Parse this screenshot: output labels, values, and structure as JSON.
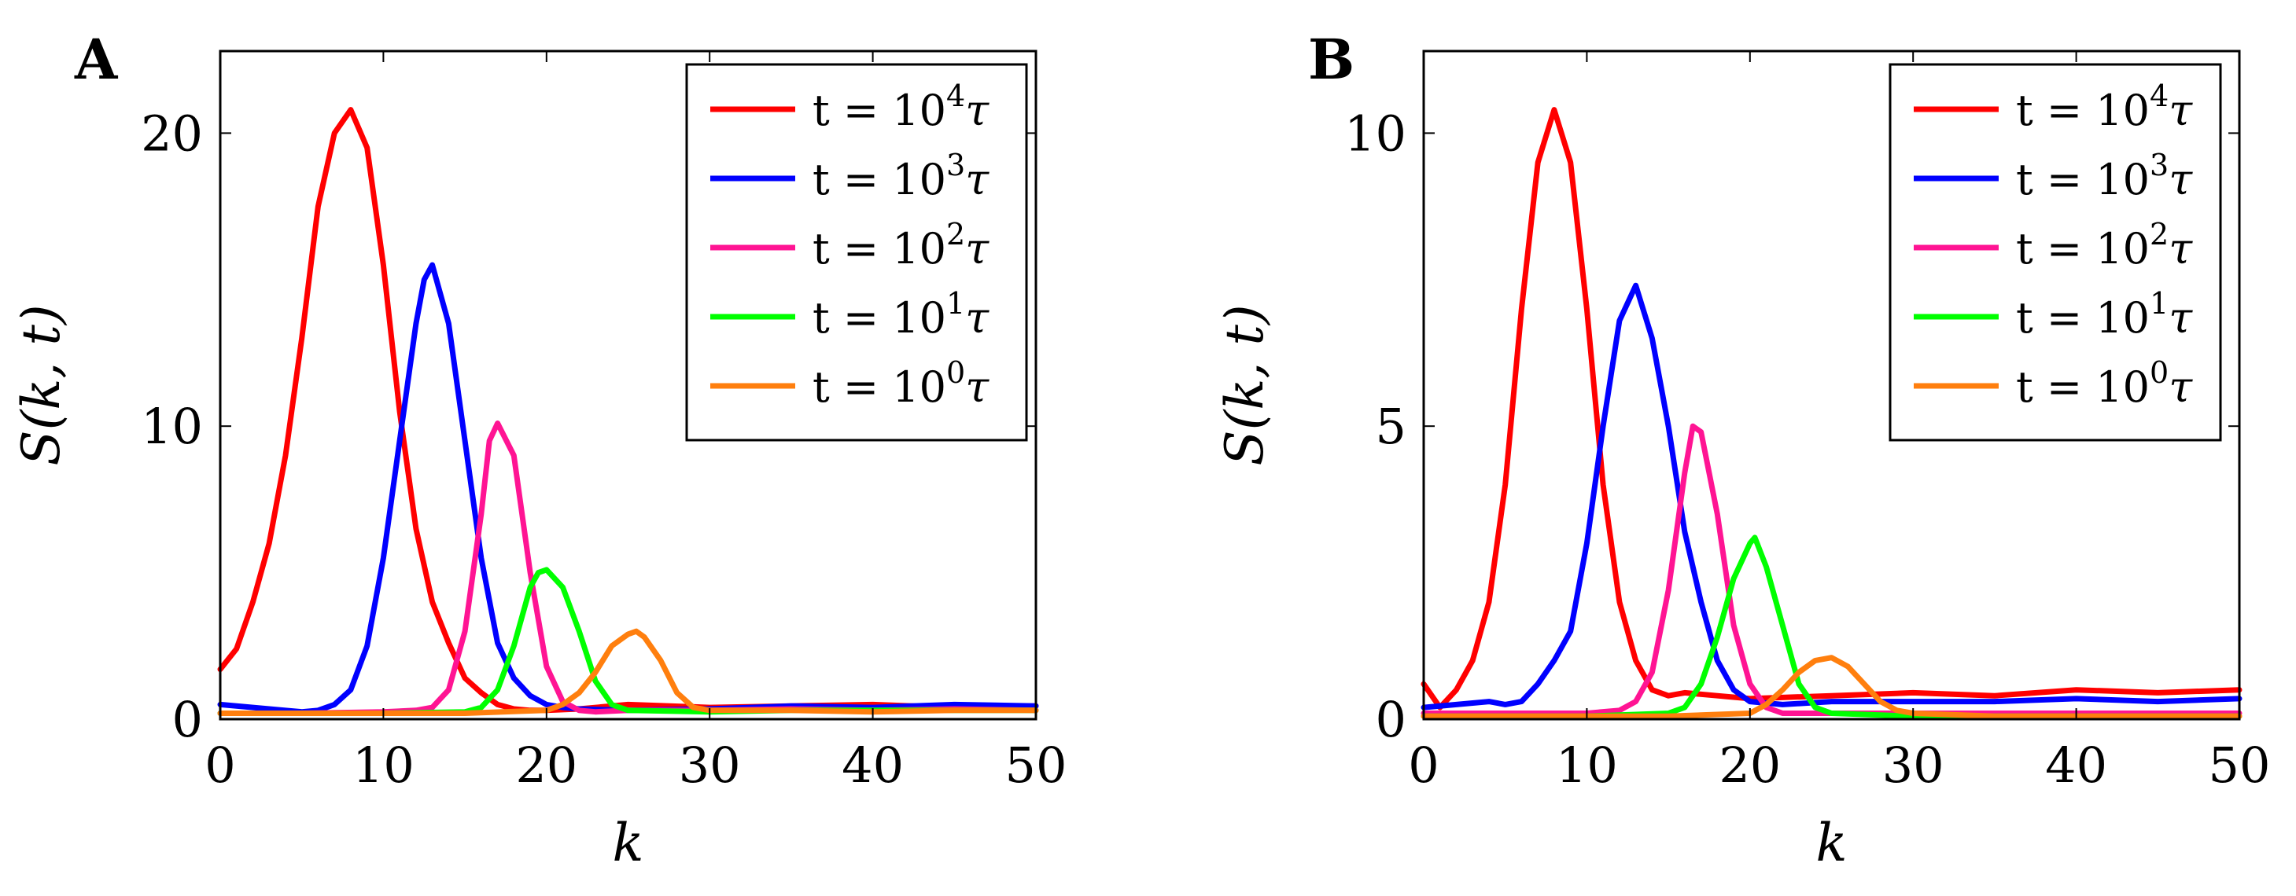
{
  "chart_data": [
    {
      "type": "line",
      "panel": "A",
      "xlabel": "k",
      "ylabel": "S(k, t)",
      "xlim": [
        0,
        50
      ],
      "ylim": [
        0,
        22.8
      ],
      "xticks": [
        0,
        10,
        20,
        30,
        40,
        50
      ],
      "yticks": [
        0,
        10,
        20
      ],
      "legend_position": "top-right",
      "series": [
        {
          "name": "t = 10^4 τ",
          "t_prefix": "t = 10",
          "exponent": "4",
          "t_suffix": "τ",
          "color": "#ff0000",
          "x": [
            0,
            1,
            2,
            3,
            4,
            5,
            6,
            7,
            8,
            9,
            10,
            11,
            12,
            13,
            14,
            15,
            16,
            17,
            18,
            19,
            20,
            22,
            25,
            30,
            35,
            40,
            45,
            50
          ],
          "y": [
            1.7,
            2.4,
            4.0,
            6.0,
            9.0,
            13.0,
            17.5,
            20.0,
            20.8,
            19.5,
            15.5,
            10.5,
            6.5,
            4.0,
            2.6,
            1.4,
            0.9,
            0.5,
            0.35,
            0.3,
            0.3,
            0.35,
            0.5,
            0.4,
            0.45,
            0.5,
            0.4,
            0.45
          ]
        },
        {
          "name": "t = 10^3 τ",
          "t_prefix": "t = 10",
          "exponent": "3",
          "t_suffix": "τ",
          "color": "#0000ff",
          "x": [
            0,
            2,
            4,
            5,
            6,
            7,
            8,
            9,
            10,
            11,
            12,
            12.5,
            13,
            14,
            15,
            16,
            17,
            18,
            19,
            20,
            21,
            22,
            25,
            30,
            35,
            40,
            45,
            50
          ],
          "y": [
            0.5,
            0.4,
            0.3,
            0.25,
            0.3,
            0.5,
            1.0,
            2.5,
            5.5,
            9.5,
            13.5,
            15.0,
            15.5,
            13.5,
            9.5,
            5.5,
            2.6,
            1.4,
            0.8,
            0.5,
            0.4,
            0.35,
            0.3,
            0.35,
            0.45,
            0.4,
            0.5,
            0.45
          ]
        },
        {
          "name": "t = 10^2 τ",
          "t_prefix": "t = 10",
          "exponent": "2",
          "t_suffix": "τ",
          "color": "#ff1493",
          "x": [
            0,
            5,
            10,
            12,
            13,
            14,
            15,
            16,
            16.5,
            17,
            18,
            19,
            20,
            21,
            22,
            23,
            25,
            30,
            35,
            40,
            45,
            50
          ],
          "y": [
            0.2,
            0.2,
            0.25,
            0.3,
            0.4,
            1.0,
            3.0,
            7.0,
            9.5,
            10.1,
            9.0,
            5.0,
            1.8,
            0.6,
            0.3,
            0.25,
            0.3,
            0.3,
            0.35,
            0.3,
            0.35,
            0.3
          ]
        },
        {
          "name": "t = 10^1 τ",
          "t_prefix": "t = 10",
          "exponent": "1",
          "t_suffix": "τ",
          "color": "#00ff00",
          "x": [
            0,
            5,
            10,
            15,
            16,
            17,
            18,
            19,
            19.5,
            20,
            21,
            22,
            23,
            24,
            25,
            30,
            35,
            40,
            45,
            50
          ],
          "y": [
            0.2,
            0.2,
            0.2,
            0.25,
            0.4,
            1.0,
            2.5,
            4.5,
            5.0,
            5.1,
            4.5,
            3.0,
            1.3,
            0.5,
            0.3,
            0.25,
            0.3,
            0.3,
            0.3,
            0.3
          ]
        },
        {
          "name": "t = 10^0 τ",
          "t_prefix": "t = 10",
          "exponent": "0",
          "t_suffix": "τ",
          "color": "#ff7f0e",
          "x": [
            0,
            5,
            10,
            15,
            20,
            21,
            22,
            23,
            24,
            25,
            25.5,
            26,
            27,
            28,
            29,
            30,
            35,
            40,
            45,
            50
          ],
          "y": [
            0.2,
            0.2,
            0.2,
            0.2,
            0.3,
            0.5,
            0.9,
            1.6,
            2.5,
            2.9,
            3.0,
            2.8,
            2.0,
            0.9,
            0.4,
            0.3,
            0.3,
            0.25,
            0.3,
            0.3
          ]
        }
      ]
    },
    {
      "type": "line",
      "panel": "B",
      "xlabel": "k",
      "ylabel": "S(k, t)",
      "xlim": [
        0,
        50
      ],
      "ylim": [
        0,
        11.4
      ],
      "xticks": [
        0,
        10,
        20,
        30,
        40,
        50
      ],
      "yticks": [
        0,
        5,
        10
      ],
      "legend_position": "top-right",
      "series": [
        {
          "name": "t = 10^4 τ",
          "t_prefix": "t = 10",
          "exponent": "4",
          "t_suffix": "τ",
          "color": "#ff0000",
          "x": [
            0,
            1,
            2,
            3,
            4,
            5,
            6,
            7,
            8,
            9,
            10,
            11,
            12,
            13,
            14,
            15,
            16,
            18,
            20,
            25,
            30,
            35,
            40,
            45,
            50
          ],
          "y": [
            0.6,
            0.2,
            0.5,
            1.0,
            2.0,
            4.0,
            7.0,
            9.5,
            10.4,
            9.5,
            7.0,
            4.0,
            2.0,
            1.0,
            0.5,
            0.4,
            0.45,
            0.4,
            0.35,
            0.4,
            0.45,
            0.4,
            0.5,
            0.45,
            0.5
          ]
        },
        {
          "name": "t = 10^3 τ",
          "t_prefix": "t = 10",
          "exponent": "3",
          "t_suffix": "τ",
          "color": "#0000ff",
          "x": [
            0,
            2,
            4,
            5,
            6,
            7,
            8,
            9,
            10,
            11,
            12,
            13,
            14,
            15,
            16,
            17,
            18,
            19,
            20,
            22,
            25,
            30,
            35,
            40,
            45,
            50
          ],
          "y": [
            0.2,
            0.25,
            0.3,
            0.25,
            0.3,
            0.6,
            1.0,
            1.5,
            3.0,
            5.0,
            6.8,
            7.4,
            6.5,
            5.0,
            3.2,
            2.0,
            1.0,
            0.5,
            0.3,
            0.25,
            0.3,
            0.3,
            0.3,
            0.35,
            0.3,
            0.35
          ]
        },
        {
          "name": "t = 10^2 τ",
          "t_prefix": "t = 10",
          "exponent": "2",
          "t_suffix": "τ",
          "color": "#ff1493",
          "x": [
            0,
            5,
            10,
            12,
            13,
            14,
            15,
            16,
            16.5,
            17,
            18,
            19,
            20,
            21,
            22,
            25,
            30,
            35,
            40,
            45,
            50
          ],
          "y": [
            0.1,
            0.1,
            0.1,
            0.15,
            0.3,
            0.8,
            2.2,
            4.2,
            5.0,
            4.9,
            3.5,
            1.6,
            0.6,
            0.2,
            0.1,
            0.1,
            0.1,
            0.1,
            0.1,
            0.1,
            0.1
          ]
        },
        {
          "name": "t = 10^1 τ",
          "t_prefix": "t = 10",
          "exponent": "1",
          "t_suffix": "τ",
          "color": "#00ff00",
          "x": [
            0,
            5,
            10,
            15,
            16,
            17,
            18,
            19,
            20,
            20.3,
            21,
            22,
            23,
            24,
            25,
            30,
            35,
            40,
            45,
            50
          ],
          "y": [
            0.05,
            0.05,
            0.05,
            0.1,
            0.2,
            0.6,
            1.4,
            2.4,
            3.0,
            3.1,
            2.6,
            1.6,
            0.6,
            0.2,
            0.1,
            0.05,
            0.05,
            0.05,
            0.05,
            0.05
          ]
        },
        {
          "name": "t = 10^0 τ",
          "t_prefix": "t = 10",
          "exponent": "0",
          "t_suffix": "τ",
          "color": "#ff7f0e",
          "x": [
            0,
            5,
            10,
            15,
            20,
            21,
            22,
            23,
            24,
            25,
            26,
            27,
            28,
            29,
            30,
            35,
            40,
            45,
            50
          ],
          "y": [
            0.05,
            0.05,
            0.05,
            0.05,
            0.1,
            0.25,
            0.5,
            0.8,
            1.0,
            1.05,
            0.9,
            0.6,
            0.3,
            0.15,
            0.1,
            0.05,
            0.05,
            0.05,
            0.05
          ]
        }
      ]
    }
  ]
}
